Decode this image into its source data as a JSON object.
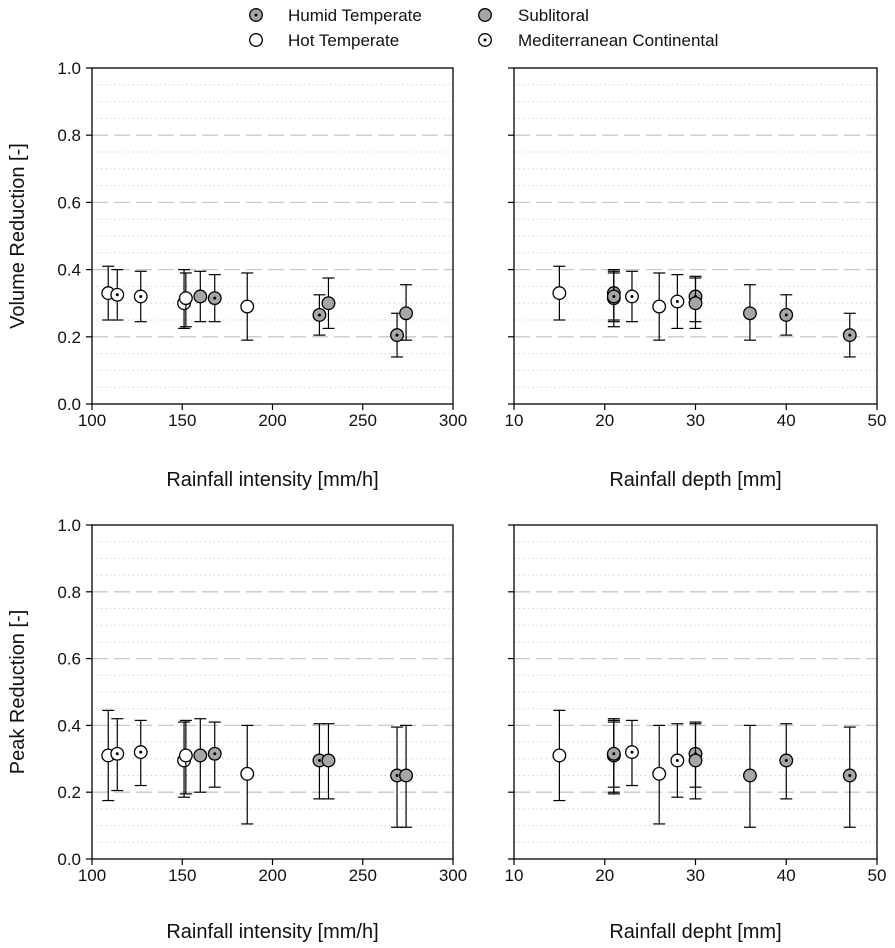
{
  "legend": [
    {
      "label": "Humid Temperate",
      "marker": "dot-gray"
    },
    {
      "label": "Sublitoral",
      "marker": "gray"
    },
    {
      "label": "Hot Temperate",
      "marker": "white"
    },
    {
      "label": "Mediterranean Continental",
      "marker": "dot-white"
    }
  ],
  "colors": {
    "gray_fill": "#a6a6a6",
    "white_fill": "#ffffff",
    "major_grid": "#c8c8c8",
    "minor_grid": "#d2d2d2",
    "ink": "#000000"
  },
  "chart_data": [
    {
      "type": "scatter",
      "panel": "top-left",
      "xlabel": "Rainfall intensity [mm/h]",
      "ylabel": "Volume Reduction [-]",
      "xlim": [
        100,
        300
      ],
      "ylim": [
        0,
        1
      ],
      "xticks": [
        100,
        150,
        200,
        250,
        300
      ],
      "yticks": [
        0.0,
        0.2,
        0.4,
        0.6,
        0.8,
        1.0
      ],
      "ytick_labels": [
        "0.0",
        "0.2",
        "0.4",
        "0.6",
        "0.8",
        "1.0"
      ],
      "grid": "horizontal dashed major, dotted minor",
      "points": [
        {
          "x": 109,
          "y": 0.33,
          "low": 0.25,
          "high": 0.41,
          "marker": "white"
        },
        {
          "x": 114,
          "y": 0.325,
          "low": 0.25,
          "high": 0.4,
          "marker": "dot-white"
        },
        {
          "x": 127,
          "y": 0.32,
          "low": 0.245,
          "high": 0.395,
          "marker": "dot-white"
        },
        {
          "x": 151,
          "y": 0.3,
          "low": 0.225,
          "high": 0.4,
          "marker": "dot-white"
        },
        {
          "x": 152,
          "y": 0.315,
          "low": 0.23,
          "high": 0.39,
          "marker": "white"
        },
        {
          "x": 160,
          "y": 0.32,
          "low": 0.245,
          "high": 0.395,
          "marker": "gray"
        },
        {
          "x": 168,
          "y": 0.315,
          "low": 0.245,
          "high": 0.385,
          "marker": "dot-gray"
        },
        {
          "x": 186,
          "y": 0.29,
          "low": 0.19,
          "high": 0.39,
          "marker": "white"
        },
        {
          "x": 226,
          "y": 0.265,
          "low": 0.205,
          "high": 0.325,
          "marker": "dot-gray"
        },
        {
          "x": 231,
          "y": 0.3,
          "low": 0.225,
          "high": 0.375,
          "marker": "gray"
        },
        {
          "x": 269,
          "y": 0.205,
          "low": 0.14,
          "high": 0.27,
          "marker": "dot-gray"
        },
        {
          "x": 274,
          "y": 0.27,
          "low": 0.19,
          "high": 0.355,
          "marker": "gray"
        }
      ]
    },
    {
      "type": "scatter",
      "panel": "top-right",
      "xlabel": "Rainfall depth [mm]",
      "ylabel": "",
      "xlim": [
        10,
        50
      ],
      "ylim": [
        0,
        1
      ],
      "xticks": [
        10,
        20,
        30,
        40,
        50
      ],
      "yticks": [
        0.0,
        0.2,
        0.4,
        0.6,
        0.8,
        1.0
      ],
      "ytick_labels": [],
      "grid": "horizontal dashed major, dotted minor",
      "points": [
        {
          "x": 15,
          "y": 0.33,
          "low": 0.25,
          "high": 0.41,
          "marker": "white"
        },
        {
          "x": 21,
          "y": 0.33,
          "low": 0.25,
          "high": 0.4,
          "marker": "gray"
        },
        {
          "x": 21,
          "y": 0.315,
          "low": 0.23,
          "high": 0.39,
          "marker": "white"
        },
        {
          "x": 21,
          "y": 0.32,
          "low": 0.245,
          "high": 0.395,
          "marker": "dot-gray"
        },
        {
          "x": 23,
          "y": 0.32,
          "low": 0.245,
          "high": 0.395,
          "marker": "dot-white"
        },
        {
          "x": 26,
          "y": 0.29,
          "low": 0.19,
          "high": 0.39,
          "marker": "white"
        },
        {
          "x": 28,
          "y": 0.305,
          "low": 0.225,
          "high": 0.385,
          "marker": "dot-white"
        },
        {
          "x": 30,
          "y": 0.32,
          "low": 0.245,
          "high": 0.38,
          "marker": "dot-gray"
        },
        {
          "x": 30,
          "y": 0.3,
          "low": 0.225,
          "high": 0.375,
          "marker": "gray"
        },
        {
          "x": 36,
          "y": 0.27,
          "low": 0.19,
          "high": 0.355,
          "marker": "gray"
        },
        {
          "x": 40,
          "y": 0.265,
          "low": 0.205,
          "high": 0.325,
          "marker": "dot-gray"
        },
        {
          "x": 47,
          "y": 0.205,
          "low": 0.14,
          "high": 0.27,
          "marker": "dot-gray"
        }
      ]
    },
    {
      "type": "scatter",
      "panel": "bottom-left",
      "xlabel": "Rainfall intensity [mm/h]",
      "ylabel": "Peak Reduction [-]",
      "xlim": [
        100,
        300
      ],
      "ylim": [
        0,
        1
      ],
      "xticks": [
        100,
        150,
        200,
        250,
        300
      ],
      "yticks": [
        0.0,
        0.2,
        0.4,
        0.6,
        0.8,
        1.0
      ],
      "ytick_labels": [
        "0.0",
        "0.2",
        "0.4",
        "0.6",
        "0.8",
        "1.0"
      ],
      "grid": "horizontal dashed major, dotted minor",
      "points": [
        {
          "x": 109,
          "y": 0.31,
          "low": 0.175,
          "high": 0.445,
          "marker": "white"
        },
        {
          "x": 114,
          "y": 0.315,
          "low": 0.205,
          "high": 0.42,
          "marker": "dot-white"
        },
        {
          "x": 127,
          "y": 0.32,
          "low": 0.22,
          "high": 0.415,
          "marker": "dot-white"
        },
        {
          "x": 151,
          "y": 0.295,
          "low": 0.185,
          "high": 0.41,
          "marker": "dot-white"
        },
        {
          "x": 152,
          "y": 0.31,
          "low": 0.195,
          "high": 0.415,
          "marker": "white"
        },
        {
          "x": 160,
          "y": 0.31,
          "low": 0.2,
          "high": 0.42,
          "marker": "gray"
        },
        {
          "x": 168,
          "y": 0.315,
          "low": 0.215,
          "high": 0.41,
          "marker": "dot-gray"
        },
        {
          "x": 186,
          "y": 0.255,
          "low": 0.105,
          "high": 0.4,
          "marker": "white"
        },
        {
          "x": 226,
          "y": 0.295,
          "low": 0.18,
          "high": 0.405,
          "marker": "dot-gray"
        },
        {
          "x": 231,
          "y": 0.295,
          "low": 0.18,
          "high": 0.405,
          "marker": "gray"
        },
        {
          "x": 269,
          "y": 0.25,
          "low": 0.095,
          "high": 0.395,
          "marker": "dot-gray"
        },
        {
          "x": 274,
          "y": 0.25,
          "low": 0.095,
          "high": 0.4,
          "marker": "gray"
        }
      ]
    },
    {
      "type": "scatter",
      "panel": "bottom-right",
      "xlabel": "Rainfall depht [mm]",
      "ylabel": "",
      "xlim": [
        10,
        50
      ],
      "ylim": [
        0,
        1
      ],
      "xticks": [
        10,
        20,
        30,
        40,
        50
      ],
      "yticks": [
        0.0,
        0.2,
        0.4,
        0.6,
        0.8,
        1.0
      ],
      "ytick_labels": [],
      "grid": "horizontal dashed major, dotted minor",
      "points": [
        {
          "x": 15,
          "y": 0.31,
          "low": 0.175,
          "high": 0.445,
          "marker": "white"
        },
        {
          "x": 21,
          "y": 0.31,
          "low": 0.2,
          "high": 0.42,
          "marker": "gray"
        },
        {
          "x": 21,
          "y": 0.31,
          "low": 0.195,
          "high": 0.415,
          "marker": "white"
        },
        {
          "x": 21,
          "y": 0.315,
          "low": 0.215,
          "high": 0.41,
          "marker": "dot-gray"
        },
        {
          "x": 23,
          "y": 0.32,
          "low": 0.22,
          "high": 0.415,
          "marker": "dot-white"
        },
        {
          "x": 26,
          "y": 0.255,
          "low": 0.105,
          "high": 0.4,
          "marker": "white"
        },
        {
          "x": 28,
          "y": 0.295,
          "low": 0.185,
          "high": 0.405,
          "marker": "dot-white"
        },
        {
          "x": 30,
          "y": 0.315,
          "low": 0.215,
          "high": 0.41,
          "marker": "dot-gray"
        },
        {
          "x": 30,
          "y": 0.295,
          "low": 0.18,
          "high": 0.405,
          "marker": "gray"
        },
        {
          "x": 36,
          "y": 0.25,
          "low": 0.095,
          "high": 0.4,
          "marker": "gray"
        },
        {
          "x": 40,
          "y": 0.295,
          "low": 0.18,
          "high": 0.405,
          "marker": "dot-gray"
        },
        {
          "x": 47,
          "y": 0.25,
          "low": 0.095,
          "high": 0.395,
          "marker": "dot-gray"
        }
      ]
    }
  ]
}
